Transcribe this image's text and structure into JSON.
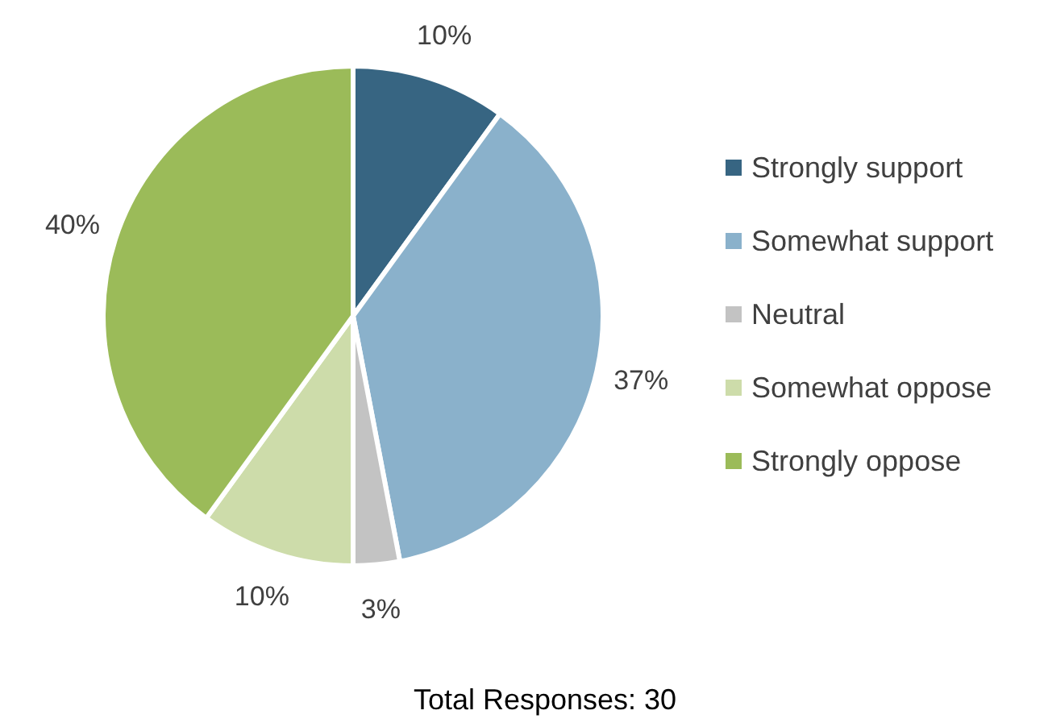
{
  "chart_data": {
    "type": "pie",
    "categories": [
      "Strongly support",
      "Somewhat support",
      "Neutral",
      "Somewhat oppose",
      "Strongly oppose"
    ],
    "values": [
      10,
      37,
      3,
      10,
      40
    ],
    "colors": [
      "#376582",
      "#8ab1cb",
      "#c3c3c3",
      "#cddcaa",
      "#9bbb59"
    ],
    "value_labels": [
      "10%",
      "37%",
      "3%",
      "10%",
      "40%"
    ],
    "legend": "right",
    "annotations": [
      "Total Responses: 30"
    ]
  }
}
